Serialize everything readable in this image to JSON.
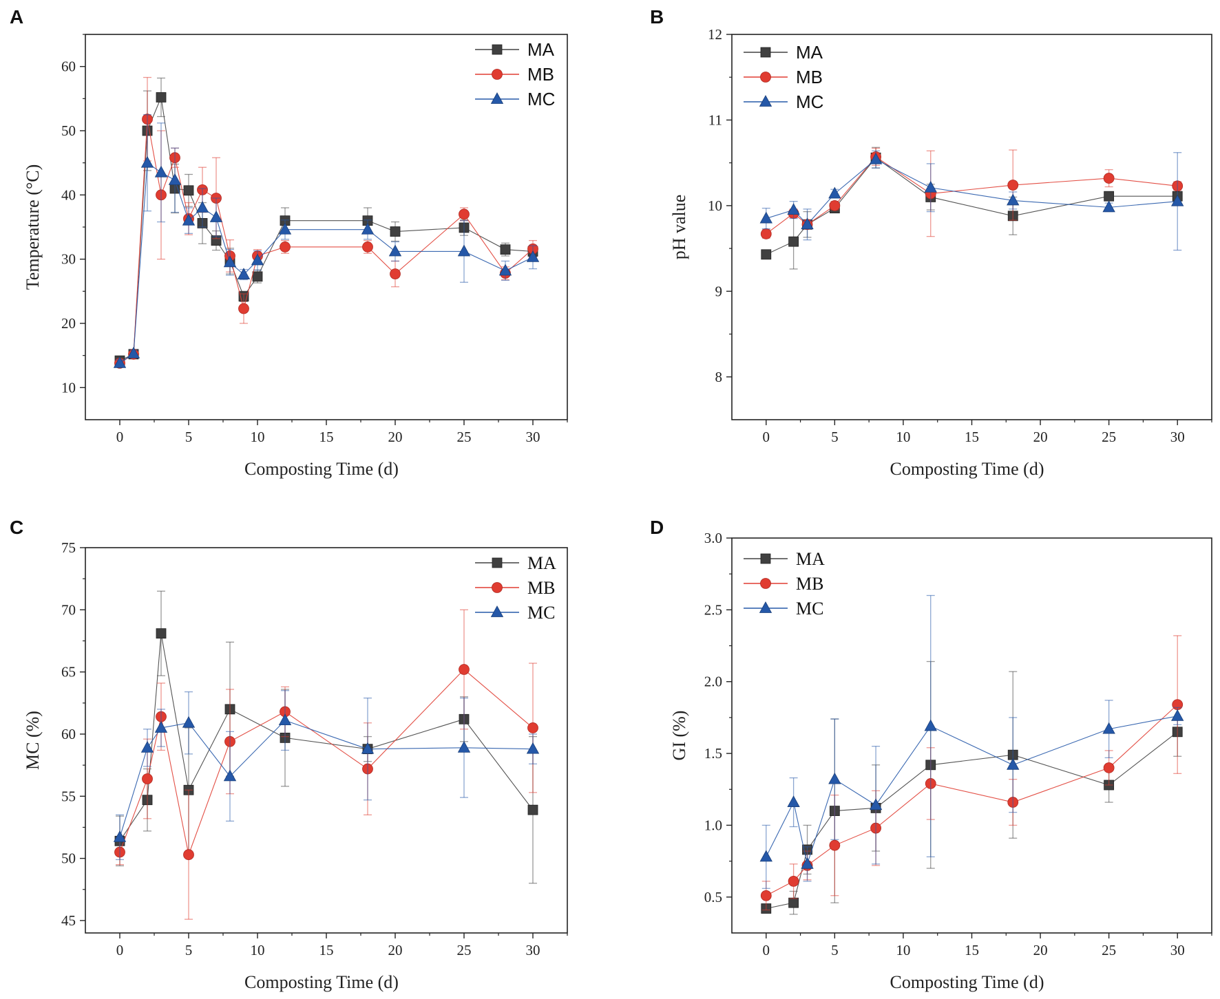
{
  "figure": {
    "panel_labels": [
      "A",
      "B",
      "C",
      "D"
    ]
  },
  "chart_data": [
    {
      "panel": "A",
      "type": "line",
      "xlabel": "Composting Time (d)",
      "ylabel": "Temperature (°C)",
      "xlim": [
        -2.5,
        32.5
      ],
      "ylim": [
        5,
        65
      ],
      "xticks": [
        0,
        5,
        10,
        15,
        20,
        25,
        30
      ],
      "yticks": [
        10,
        20,
        30,
        40,
        50,
        60
      ],
      "legend_position": "top-right",
      "series": [
        {
          "name": "MA",
          "color": "#404040",
          "marker": "square",
          "x": [
            0,
            1,
            2,
            3,
            4,
            5,
            6,
            7,
            8,
            9,
            10,
            12,
            18,
            20,
            25,
            28,
            30
          ],
          "y": [
            14.2,
            15.2,
            50.0,
            55.2,
            41.0,
            40.7,
            35.6,
            32.9,
            29.7,
            24.2,
            27.3,
            36.0,
            36.0,
            34.3,
            34.9,
            31.5,
            31.2
          ],
          "err": [
            0.6,
            0.5,
            6.2,
            3.0,
            3.8,
            2.5,
            3.2,
            1.5,
            2.0,
            0.8,
            1.0,
            2.0,
            2.0,
            1.5,
            1.2,
            1.0,
            0.8
          ]
        },
        {
          "name": "MB",
          "color": "#e03c31",
          "marker": "circle",
          "x": [
            0,
            1,
            2,
            3,
            4,
            5,
            6,
            7,
            8,
            9,
            10,
            12,
            18,
            20,
            25,
            28,
            30
          ],
          "y": [
            13.8,
            15.2,
            51.8,
            40.0,
            45.8,
            36.3,
            40.8,
            39.5,
            30.5,
            22.3,
            30.5,
            31.9,
            31.9,
            27.7,
            37.0,
            27.8,
            31.6
          ],
          "err": [
            0.6,
            0.5,
            6.5,
            10.0,
            1.5,
            2.5,
            3.5,
            6.3,
            2.5,
            2.3,
            1.0,
            1.0,
            1.0,
            2.0,
            1.0,
            1.0,
            1.3
          ]
        },
        {
          "name": "MC",
          "color": "#2558a8",
          "marker": "triangle",
          "x": [
            0,
            1,
            2,
            3,
            4,
            5,
            6,
            7,
            8,
            9,
            10,
            12,
            18,
            20,
            25,
            28,
            30
          ],
          "y": [
            13.8,
            15.3,
            45.0,
            43.5,
            42.3,
            36.0,
            38.0,
            36.5,
            29.5,
            27.6,
            29.8,
            34.6,
            34.6,
            31.2,
            31.2,
            28.2,
            30.3
          ],
          "err": [
            0.5,
            0.5,
            7.5,
            7.7,
            5.0,
            2.0,
            3.0,
            3.0,
            2.0,
            0.8,
            1.5,
            1.5,
            1.5,
            1.5,
            4.8,
            1.5,
            1.8
          ]
        }
      ]
    },
    {
      "panel": "B",
      "type": "line",
      "xlabel": "Composting Time (d)",
      "ylabel": "pH value",
      "xlim": [
        -2.5,
        32.5
      ],
      "ylim": [
        7.5,
        12
      ],
      "xticks": [
        0,
        5,
        10,
        15,
        20,
        25,
        30
      ],
      "yticks": [
        8,
        9,
        10,
        11,
        12
      ],
      "legend_position": "top-left",
      "series": [
        {
          "name": "MA",
          "color": "#404040",
          "marker": "square",
          "x": [
            0,
            2,
            3,
            5,
            8,
            12,
            18,
            25,
            30
          ],
          "y": [
            9.43,
            9.58,
            9.78,
            9.97,
            10.56,
            10.1,
            9.88,
            10.11,
            10.11
          ],
          "err": [
            0.03,
            0.32,
            0.15,
            0.05,
            0.12,
            0.15,
            0.22,
            0.05,
            0.05
          ]
        },
        {
          "name": "MB",
          "color": "#e03c31",
          "marker": "circle",
          "x": [
            0,
            2,
            3,
            5,
            8,
            12,
            18,
            25,
            30
          ],
          "y": [
            9.67,
            9.91,
            9.78,
            10.0,
            10.57,
            10.14,
            10.24,
            10.32,
            10.23
          ],
          "err": [
            0.05,
            0.05,
            0.05,
            0.05,
            0.1,
            0.5,
            0.41,
            0.1,
            0.05
          ]
        },
        {
          "name": "MC",
          "color": "#2558a8",
          "marker": "triangle",
          "x": [
            0,
            2,
            3,
            5,
            8,
            12,
            18,
            25,
            30
          ],
          "y": [
            9.85,
            9.95,
            9.78,
            10.14,
            10.54,
            10.21,
            10.06,
            9.98,
            10.05
          ],
          "err": [
            0.12,
            0.1,
            0.18,
            0.05,
            0.1,
            0.28,
            0.1,
            0.05,
            0.57
          ]
        }
      ]
    },
    {
      "panel": "C",
      "type": "line",
      "xlabel": "Composting Time (d)",
      "ylabel": "MC (%)",
      "xlim": [
        -2.5,
        32.5
      ],
      "ylim": [
        44,
        75
      ],
      "xticks": [
        0,
        5,
        10,
        15,
        20,
        25,
        30
      ],
      "yticks": [
        45,
        50,
        55,
        60,
        65,
        70,
        75
      ],
      "legend_position": "top-right",
      "series": [
        {
          "name": "MA",
          "color": "#404040",
          "marker": "square",
          "x": [
            0,
            2,
            3,
            5,
            8,
            12,
            18,
            25,
            30
          ],
          "y": [
            51.4,
            54.7,
            68.1,
            55.5,
            62.0,
            59.7,
            58.8,
            61.2,
            53.9
          ],
          "err": [
            2.0,
            2.5,
            3.4,
            5.0,
            5.4,
            3.9,
            1.0,
            1.8,
            5.9
          ]
        },
        {
          "name": "MB",
          "color": "#e03c31",
          "marker": "circle",
          "x": [
            0,
            2,
            3,
            5,
            8,
            12,
            18,
            25,
            30
          ],
          "y": [
            50.5,
            56.4,
            61.4,
            50.3,
            59.4,
            61.8,
            57.2,
            65.2,
            60.5
          ],
          "err": [
            1.0,
            3.2,
            2.7,
            5.2,
            4.2,
            2.0,
            3.7,
            4.8,
            5.2
          ]
        },
        {
          "name": "MC",
          "color": "#2558a8",
          "marker": "triangle",
          "x": [
            0,
            2,
            3,
            5,
            8,
            12,
            18,
            25,
            30
          ],
          "y": [
            51.7,
            58.9,
            60.5,
            60.9,
            56.6,
            61.1,
            58.8,
            58.9,
            58.8
          ],
          "err": [
            1.8,
            1.5,
            1.5,
            2.5,
            3.6,
            2.4,
            4.1,
            4.0,
            1.2
          ]
        }
      ]
    },
    {
      "panel": "D",
      "type": "line",
      "xlabel": "Composting Time (d)",
      "ylabel": "GI (%)",
      "xlim": [
        -2.5,
        32.5
      ],
      "ylim": [
        0.25,
        3.0
      ],
      "xticks": [
        0,
        5,
        10,
        15,
        20,
        25,
        30
      ],
      "yticks": [
        0.5,
        1.0,
        1.5,
        2.0,
        2.5,
        3.0
      ],
      "legend_position": "top-left",
      "series": [
        {
          "name": "MA",
          "color": "#404040",
          "marker": "square",
          "x": [
            0,
            2,
            3,
            5,
            8,
            12,
            18,
            25,
            30
          ],
          "y": [
            0.42,
            0.46,
            0.83,
            1.1,
            1.12,
            1.42,
            1.49,
            1.28,
            1.65
          ],
          "err": [
            0.03,
            0.08,
            0.17,
            0.64,
            0.3,
            0.72,
            0.58,
            0.12,
            0.17
          ]
        },
        {
          "name": "MB",
          "color": "#e03c31",
          "marker": "circle",
          "x": [
            0,
            2,
            3,
            5,
            8,
            12,
            18,
            25,
            30
          ],
          "y": [
            0.51,
            0.61,
            0.72,
            0.86,
            0.98,
            1.29,
            1.16,
            1.4,
            1.84
          ],
          "err": [
            0.1,
            0.12,
            0.1,
            0.35,
            0.26,
            0.25,
            0.16,
            0.12,
            0.48
          ]
        },
        {
          "name": "MC",
          "color": "#2558a8",
          "marker": "triangle",
          "x": [
            0,
            2,
            3,
            5,
            8,
            12,
            18,
            25,
            30
          ],
          "y": [
            0.78,
            1.16,
            0.73,
            1.32,
            1.14,
            1.69,
            1.42,
            1.67,
            1.76
          ],
          "err": [
            0.22,
            0.17,
            0.12,
            0.42,
            0.41,
            0.91,
            0.33,
            0.2,
            0.06
          ]
        }
      ]
    }
  ]
}
